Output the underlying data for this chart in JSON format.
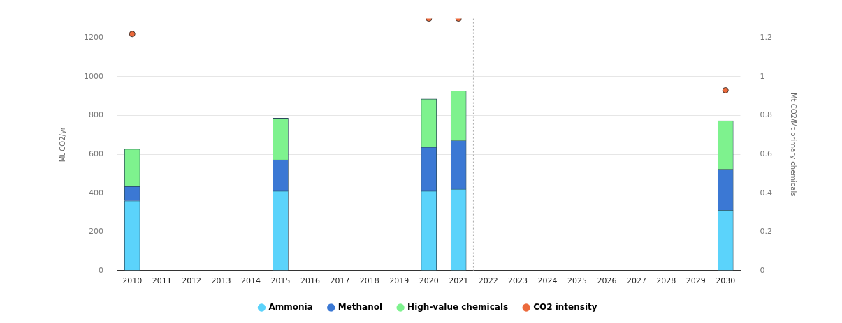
{
  "chart_data": {
    "type": "bar",
    "stacked": true,
    "x": [
      2010,
      2015,
      2020,
      2021,
      2030
    ],
    "xlim": [
      2009.5,
      2030.5
    ],
    "xticks": [
      2010,
      2011,
      2012,
      2013,
      2014,
      2015,
      2016,
      2017,
      2018,
      2019,
      2020,
      2021,
      2022,
      2023,
      2024,
      2025,
      2026,
      2027,
      2028,
      2029,
      2030
    ],
    "ylabel": "Mt CO2/yr",
    "y2label": "Mt CO2/Mt primary chemicals",
    "ylim": [
      0,
      1300
    ],
    "yticks": [
      0,
      200,
      400,
      600,
      800,
      1000,
      1200
    ],
    "y2lim": [
      0,
      1.3
    ],
    "y2ticks": [
      0,
      0.2,
      0.4,
      0.6,
      0.8,
      1,
      1.2
    ],
    "series": [
      {
        "name": "Ammonia",
        "color": "#5bd3fb",
        "values": [
          360,
          410,
          410,
          420,
          311
        ]
      },
      {
        "name": "Methanol",
        "color": "#3b78d4",
        "values": [
          74,
          161,
          226,
          250,
          212
        ]
      },
      {
        "name": "High-value chemicals",
        "color": "#7ef28e",
        "values": [
          192,
          215,
          249,
          256,
          250
        ]
      },
      {
        "name": "CO2 intensity",
        "type": "scatter",
        "axis": "y2",
        "color": "#ec6a3c",
        "marker": "circle",
        "values": [
          1.22,
          null,
          1.3,
          1.3,
          0.93
        ]
      }
    ],
    "ref_lines": [
      {
        "axis": "x",
        "value": 2021.5,
        "color": "#aaaaaa",
        "line_style": "dotted"
      }
    ],
    "grid": "y",
    "legend": "bottom"
  }
}
